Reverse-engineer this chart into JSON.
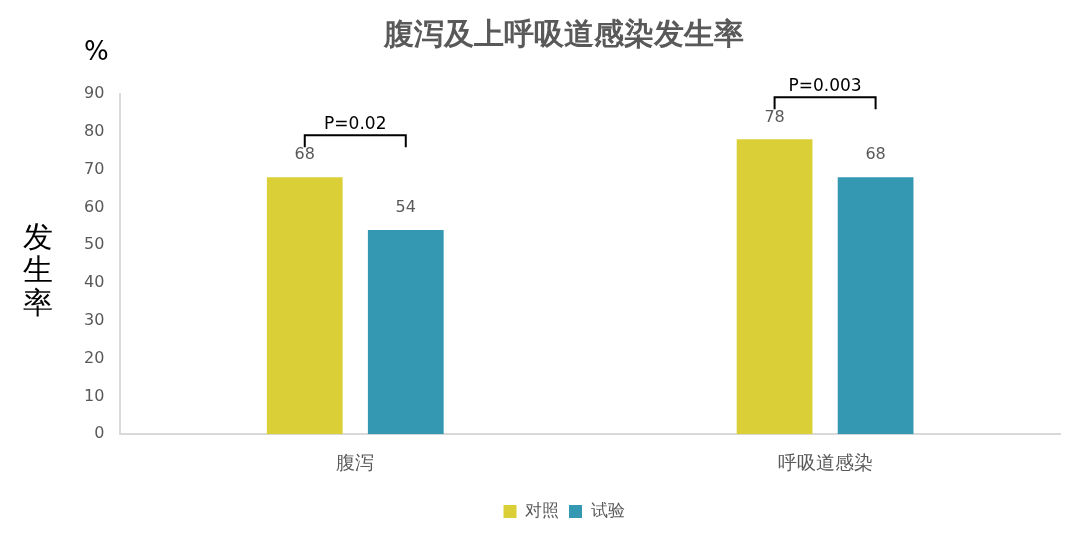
{
  "chart_data": {
    "type": "bar",
    "title": "腹泻及上呼吸道感染发生率",
    "ylabel": "发生率",
    "categories": [
      "腹泻",
      "呼吸道感染"
    ],
    "series": [
      {
        "name": "对照",
        "color": "#dbcf38",
        "values": [
          68,
          78
        ]
      },
      {
        "name": "试验",
        "color": "#3598b2",
        "values": [
          54,
          68
        ]
      }
    ],
    "ylim": [
      0,
      90
    ],
    "yticks": [
      0,
      10,
      20,
      30,
      40,
      50,
      60,
      70,
      80,
      90
    ],
    "grid": false,
    "legend": "bottom",
    "data_labels": true,
    "annotations": [
      "%",
      "P=0.02",
      "P=0.003"
    ]
  }
}
